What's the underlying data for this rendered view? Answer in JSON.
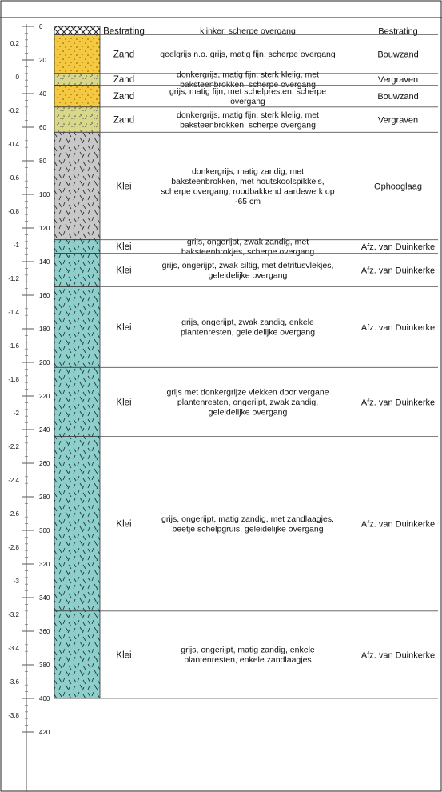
{
  "depth_scale": {
    "elev_ticks": [
      "0.2",
      "0",
      "-0.2",
      "-0.4",
      "-0.6",
      "-0.8",
      "-1",
      "-1.2",
      "-1.4",
      "-1.6",
      "-1.8",
      "-2",
      "-2.2",
      "-2.4",
      "-2.6",
      "-2.8",
      "-3",
      "-3.2",
      "-3.4",
      "-3.6",
      "-3.8"
    ],
    "depth_ticks": [
      "0",
      "20",
      "40",
      "60",
      "80",
      "100",
      "120",
      "140",
      "160",
      "180",
      "200",
      "220",
      "240",
      "260",
      "280",
      "300",
      "320",
      "340",
      "360",
      "380",
      "400",
      "420"
    ]
  },
  "layers": [
    {
      "top_cm": 0,
      "bottom_cm": 5,
      "pattern": "pavement",
      "type": "Bestrating",
      "description": [
        "klinker, scherpe overgang"
      ],
      "unit": "Bestrating"
    },
    {
      "top_cm": 5,
      "bottom_cm": 28,
      "pattern": "sand-yellow",
      "type": "Zand",
      "description": [
        "geelgrijs n.o. grijs, matig fijn, scherpe overgang"
      ],
      "unit": "Bouwzand"
    },
    {
      "top_cm": 28,
      "bottom_cm": 35,
      "pattern": "sand-green",
      "type": "Zand",
      "description": [
        "donkergrijs, matig fijn, sterk kleiig, met",
        "baksteenbrokken, scherpe overgang"
      ],
      "unit": "Vergraven"
    },
    {
      "top_cm": 35,
      "bottom_cm": 48,
      "pattern": "sand-yellow",
      "type": "Zand",
      "description": [
        "grijs, matig fijn, met schelpresten, scherpe",
        "overgang"
      ],
      "unit": "Bouwzand"
    },
    {
      "top_cm": 48,
      "bottom_cm": 63,
      "pattern": "sand-green",
      "type": "Zand",
      "description": [
        "donkergrijs, matig fijn, sterk kleiig, met",
        "baksteenbrokken, scherpe overgang"
      ],
      "unit": "Vergraven"
    },
    {
      "top_cm": 63,
      "bottom_cm": 127,
      "pattern": "clay-grey",
      "type": "Klei",
      "description": [
        "donkergrijs, matig zandig, met",
        "baksteenbrokken, met houtskoolspikkels,",
        "scherpe overgang, roodbakkend aardewerk op",
        "-65 cm"
      ],
      "unit": "Ophooglaag"
    },
    {
      "top_cm": 127,
      "bottom_cm": 135,
      "pattern": "clay-teal",
      "type": "Klei",
      "description": [
        "grijs, ongerijpt, zwak zandig, met",
        "baksteenbrokjes, scherpe overgang"
      ],
      "unit": "Afz. van Duinkerke"
    },
    {
      "top_cm": 135,
      "bottom_cm": 155,
      "pattern": "clay-teal",
      "type": "Klei",
      "description": [
        "grijs, ongerijpt, zwak siltig, met detritusvlekjes,",
        "geleidelijke overgang"
      ],
      "unit": "Afz. van Duinkerke"
    },
    {
      "top_cm": 155,
      "bottom_cm": 203,
      "pattern": "clay-teal",
      "type": "Klei",
      "description": [
        "grijs, ongerijpt, zwak zandig, enkele",
        "plantenresten, geleidelijke overgang"
      ],
      "unit": "Afz. van Duinkerke"
    },
    {
      "top_cm": 203,
      "bottom_cm": 244,
      "pattern": "clay-teal",
      "type": "Klei",
      "description": [
        "grijs met donkergrijze vlekken door vergane",
        "plantenresten, ongerijpt, zwak zandig,",
        "geleidelijke overgang"
      ],
      "unit": "Afz. van Duinkerke"
    },
    {
      "top_cm": 244,
      "bottom_cm": 348,
      "pattern": "clay-teal",
      "type": "Klei",
      "description": [
        "grijs, ongerijpt, matig zandig, met zandlaagjes,",
        "beetje schelpgruis, geleidelijke overgang"
      ],
      "unit": "Afz. van Duinkerke"
    },
    {
      "top_cm": 348,
      "bottom_cm": 400,
      "pattern": "clay-teal",
      "type": "Klei",
      "description": [
        "grijs, ongerijpt, matig zandig, enkele",
        "plantenresten, enkele zandlaagjes"
      ],
      "unit": "Afz. van Duinkerke"
    }
  ],
  "colors": {
    "sand_yellow": "#f5c842",
    "sand_green": "#d9d88a",
    "clay_grey": "#c8c8c8",
    "clay_teal": "#8ecfcc",
    "line": "#555555"
  }
}
